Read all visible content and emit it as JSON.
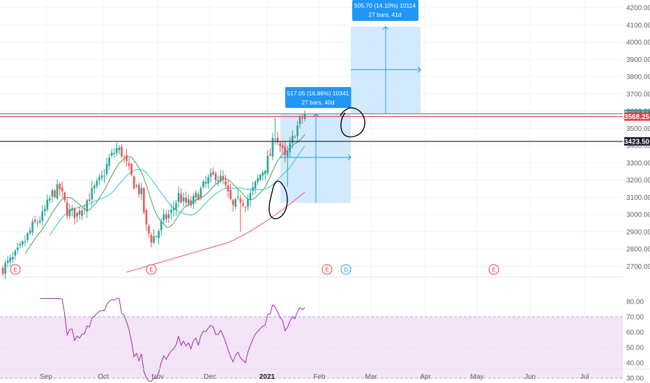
{
  "chart_data": {
    "type": "candlestick",
    "price_axis": {
      "range": [
        2640,
        4260
      ],
      "ticks": [
        "4200.00",
        "4100.00",
        "4000.00",
        "3900.00",
        "3800.00",
        "3700.00",
        "3600.00",
        "3500.00",
        "3400.00",
        "3300.00",
        "3200.00",
        "3100.00",
        "3000.00",
        "2900.00",
        "2800.00",
        "2700.00"
      ]
    },
    "rsi_axis": {
      "range": [
        25,
        85
      ],
      "ticks": [
        "80.00",
        "70.00",
        "60.00",
        "50.00",
        "40.00",
        "30.00"
      ],
      "band": [
        30,
        70
      ]
    },
    "time_axis": {
      "labels": [
        "Sep",
        "Oct",
        "Nov",
        "Dec",
        "2021",
        "Feb",
        "Mar",
        "Apr",
        "May",
        "Jun",
        "Jul"
      ],
      "bold_label": "2021"
    },
    "price_levels": [
      {
        "label": "3584.00",
        "value": 3584,
        "color": "#26a69a"
      },
      {
        "label": "3568.25",
        "value": 3568,
        "color": "#f23645"
      },
      {
        "label": "3423.50",
        "value": 3424,
        "color": "#131722"
      }
    ],
    "measure_boxes": [
      {
        "line1": "517.05 (16.86%) 10341",
        "line2": "27 bars, 40d",
        "from": 3067,
        "to": 3584
      },
      {
        "line1": "505.70 (14.10%) 10114",
        "line2": "27 bars, 41d",
        "from": 3584,
        "to": 4090
      }
    ],
    "events": [
      {
        "label": "E",
        "color": "#f23645"
      },
      {
        "label": "E",
        "color": "#f23645"
      },
      {
        "label": "E",
        "color": "#f23645"
      },
      {
        "label": "D",
        "color": "#2196f3"
      },
      {
        "label": "E",
        "color": "#f23645"
      }
    ],
    "colors": {
      "up": "#26a69a",
      "down": "#ef5350",
      "ma_fast": "#43a047",
      "ma_mid": "#26c6da",
      "ma_slow": "#ef5350",
      "rsi": "#9c27b0",
      "rsi_band": "#f3e5f5",
      "measure_fill": "#bbdefb",
      "measure_line": "#2196f3"
    }
  }
}
